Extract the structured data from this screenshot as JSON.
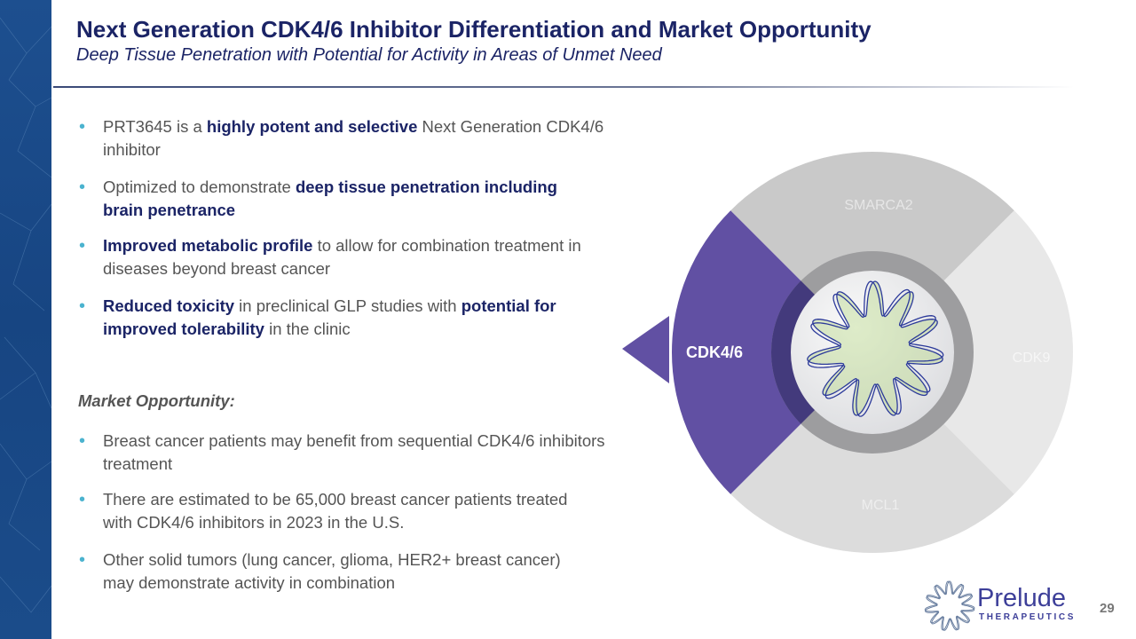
{
  "header": {
    "title": "Next Generation CDK4/6 Inhibitor Differentiation and Market Opportunity",
    "subtitle": "Deep Tissue Penetration with Potential for Activity in Areas of Unmet Need"
  },
  "bullets": [
    {
      "segments": [
        {
          "text": "PRT3645 is a "
        },
        {
          "text": "highly potent and selective",
          "bold": true
        },
        {
          "text": " Next Generation CDK4/6 inhibitor"
        }
      ]
    },
    {
      "segments": [
        {
          "text": "Optimized to demonstrate "
        },
        {
          "text": "deep tissue penetration including brain penetrance",
          "bold": true
        }
      ]
    },
    {
      "segments": [
        {
          "text": "Improved metabolic profile",
          "bold": true
        },
        {
          "text": " to allow for combination treatment in diseases beyond breast cancer"
        }
      ]
    },
    {
      "segments": [
        {
          "text": "Reduced toxicity",
          "bold": true
        },
        {
          "text": " in preclinical GLP studies with "
        },
        {
          "text": "potential for improved tolerability",
          "bold": true
        },
        {
          "text": " in the clinic"
        }
      ]
    }
  ],
  "market": {
    "heading": "Market Opportunity:",
    "bullets": [
      "Breast cancer patients may benefit from sequential CDK4/6 inhibitors treatment",
      "There are estimated to be 65,000 breast cancer patients treated with CDK4/6 inhibitors in 2023 in the U.S.",
      "Other solid tumors (lung cancer, glioma, HER2+ breast cancer) may demonstrate activity in combination"
    ]
  },
  "diagram": {
    "segments": [
      {
        "label": "SMARCA2",
        "color": "#c9c9c9"
      },
      {
        "label": "CDK9",
        "color": "#e8e8e8"
      },
      {
        "label": "MCL1",
        "color": "#dcdcdc"
      },
      {
        "label": "CDK4/6",
        "color": "#6150a3",
        "highlighted": true
      }
    ]
  },
  "footer": {
    "logo_name": "Prelude",
    "logo_sub": "THERAPEUTICS",
    "page_number": "29"
  },
  "colors": {
    "navy": "#1b2466",
    "bullet": "#4bb3cf",
    "sidebar": "#1a4a88",
    "accent": "#6150a3"
  }
}
